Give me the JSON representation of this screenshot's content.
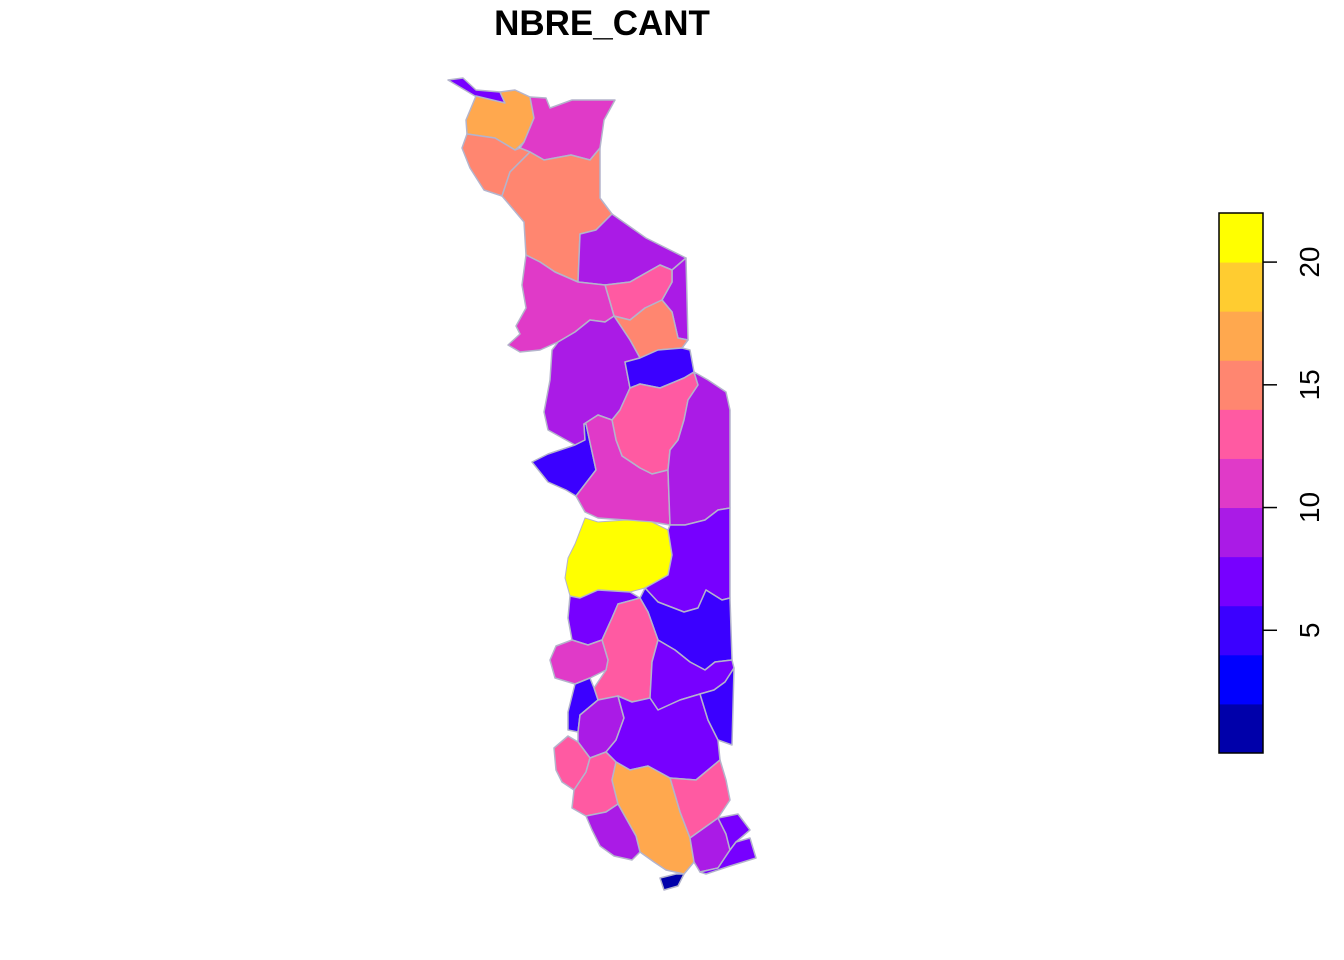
{
  "title": "NBRE_CANT",
  "legend": {
    "ticks": [
      {
        "value": 5,
        "label": "5"
      },
      {
        "value": 10,
        "label": "10"
      },
      {
        "value": 15,
        "label": "15"
      },
      {
        "value": 20,
        "label": "20"
      }
    ],
    "range": [
      0,
      22
    ],
    "bins": [
      {
        "from": 0,
        "to": 2,
        "color": "#0000AA"
      },
      {
        "from": 2,
        "to": 4,
        "color": "#0000FF"
      },
      {
        "from": 4,
        "to": 6,
        "color": "#3B00FF"
      },
      {
        "from": 6,
        "to": 8,
        "color": "#7700FF"
      },
      {
        "from": 8,
        "to": 10,
        "color": "#AA1BE6"
      },
      {
        "from": 10,
        "to": 12,
        "color": "#E03AC8"
      },
      {
        "from": 12,
        "to": 14,
        "color": "#FF5AA2"
      },
      {
        "from": 14,
        "to": 16,
        "color": "#FF8670"
      },
      {
        "from": 16,
        "to": 18,
        "color": "#FFA84E"
      },
      {
        "from": 18,
        "to": 20,
        "color": "#FFCC30"
      },
      {
        "from": 20,
        "to": 22,
        "color": "#FFFF00"
      }
    ]
  },
  "map": {
    "border_color": "#B4B4CC",
    "regions": [
      {
        "id": "north-tip",
        "value": 7
      },
      {
        "id": "dapaong-west",
        "value": 17
      },
      {
        "id": "dapaong-east",
        "value": 11
      },
      {
        "id": "savanes-west",
        "value": 15
      },
      {
        "id": "savanes-centre",
        "value": 15
      },
      {
        "id": "kara-ne",
        "value": 9
      },
      {
        "id": "kara-east-strip",
        "value": 9
      },
      {
        "id": "kara-pink",
        "value": 13
      },
      {
        "id": "kara-west",
        "value": 11
      },
      {
        "id": "kozah",
        "value": 15
      },
      {
        "id": "central-west",
        "value": 9
      },
      {
        "id": "blue-east",
        "value": 5
      },
      {
        "id": "pink-centre",
        "value": 13
      },
      {
        "id": "blue-west",
        "value": 5
      },
      {
        "id": "centre-magenta",
        "value": 11
      },
      {
        "id": "centre-east",
        "value": 9
      },
      {
        "id": "yellow-district",
        "value": 21
      },
      {
        "id": "plateaux-east",
        "value": 7
      },
      {
        "id": "plateaux-blue",
        "value": 5
      },
      {
        "id": "plateaux-west",
        "value": 7
      },
      {
        "id": "plateaux-pink",
        "value": 13
      },
      {
        "id": "plateaux-magenta",
        "value": 11
      },
      {
        "id": "plateaux-centre",
        "value": 7
      },
      {
        "id": "south-blue-west",
        "value": 5
      },
      {
        "id": "south-purple",
        "value": 9
      },
      {
        "id": "south-central",
        "value": 7
      },
      {
        "id": "south-east-blue",
        "value": 5
      },
      {
        "id": "south-pink-west",
        "value": 13
      },
      {
        "id": "south-pink-2",
        "value": 13
      },
      {
        "id": "south-pink-east",
        "value": 13
      },
      {
        "id": "south-orange",
        "value": 17
      },
      {
        "id": "south-purple-west",
        "value": 9
      },
      {
        "id": "south-purple-east",
        "value": 9
      },
      {
        "id": "lome-east",
        "value": 7
      },
      {
        "id": "lome-coast",
        "value": 7
      },
      {
        "id": "lome-tip",
        "value": 1
      }
    ]
  }
}
